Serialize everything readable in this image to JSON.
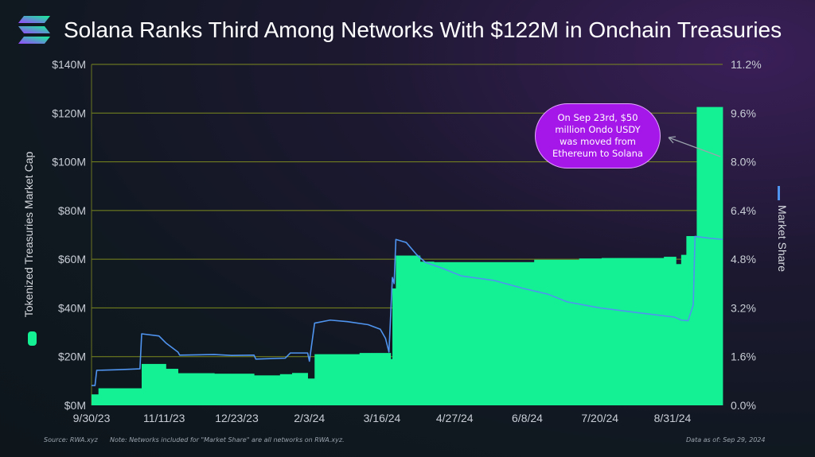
{
  "title": "Solana Ranks Third Among Networks With $122M in Onchain Treasuries",
  "footer": {
    "source_label": "Source:",
    "source_value": "RWA.xyz",
    "note_label": "Note:",
    "note_value": "Networks included for \"Market Share\" are all networks on RWA.xyz.",
    "asof_label": "Data as of:",
    "asof_value": "Sep 29, 2024"
  },
  "annotation": "On Sep 23rd, $50 million Ondo USDY was moved from Ethereum to Solana",
  "colors": {
    "bar": "#14f195",
    "line": "#4f94ef",
    "grid": "#7d8a1e",
    "callout": "#a516e8",
    "axis_text": "#c9ced6"
  },
  "chart_data": {
    "type": "area",
    "title": "Solana Ranks Third Among Networks With $122M in Onchain Treasuries",
    "x_tick_labels": [
      "9/30/23",
      "11/11/23",
      "12/23/23",
      "2/3/24",
      "3/16/24",
      "4/27/24",
      "6/8/24",
      "7/20/24",
      "8/31/24"
    ],
    "x_range": [
      "2023-09-30",
      "2024-09-29"
    ],
    "y_left": {
      "label": "Tokenized Treasuries Market Cap",
      "range": [
        0,
        140
      ],
      "unit": "$M",
      "tick_labels": [
        "$0M",
        "$20M",
        "$40M",
        "$60M",
        "$80M",
        "$100M",
        "$120M",
        "$140M"
      ]
    },
    "y_right": {
      "label": "Market Share",
      "range": [
        0,
        11.2
      ],
      "unit": "%",
      "tick_labels": [
        "0.0%",
        "1.6%",
        "3.2%",
        "4.8%",
        "6.4%",
        "8.0%",
        "9.6%",
        "11.2%"
      ]
    },
    "grid": true,
    "legend_placement": "axis-side",
    "series": [
      {
        "name": "Tokenized Treasuries Market Cap",
        "axis": "left",
        "style": "step-area",
        "points": [
          [
            "2023-09-30",
            4.5
          ],
          [
            "2023-10-04",
            7
          ],
          [
            "2023-10-29",
            17
          ],
          [
            "2023-11-12",
            15
          ],
          [
            "2023-11-19",
            13.2
          ],
          [
            "2023-12-10",
            13
          ],
          [
            "2024-01-02",
            12.3
          ],
          [
            "2024-01-17",
            12.8
          ],
          [
            "2024-01-24",
            13.3
          ],
          [
            "2024-02-02",
            11
          ],
          [
            "2024-02-06",
            21
          ],
          [
            "2024-03-03",
            21.5
          ],
          [
            "2024-03-21",
            19
          ],
          [
            "2024-03-22",
            48
          ],
          [
            "2024-03-24",
            61.5
          ],
          [
            "2024-04-07",
            59
          ],
          [
            "2024-04-15",
            58.8
          ],
          [
            "2024-06-12",
            59.8
          ],
          [
            "2024-07-08",
            60.3
          ],
          [
            "2024-07-21",
            60.5
          ],
          [
            "2024-08-26",
            61
          ],
          [
            "2024-09-02",
            58
          ],
          [
            "2024-09-05",
            61.8
          ],
          [
            "2024-09-08",
            69.5
          ],
          [
            "2024-09-12",
            69.5
          ],
          [
            "2024-09-14",
            122.5
          ],
          [
            "2024-09-29",
            122.5
          ]
        ]
      },
      {
        "name": "Market Share",
        "axis": "right",
        "style": "line",
        "points": [
          [
            "2023-09-30",
            0.65
          ],
          [
            "2023-10-02",
            0.65
          ],
          [
            "2023-10-03",
            1.15
          ],
          [
            "2023-10-15",
            1.17
          ],
          [
            "2023-10-28",
            1.2
          ],
          [
            "2023-10-29",
            2.35
          ],
          [
            "2023-11-08",
            2.28
          ],
          [
            "2023-11-12",
            2.05
          ],
          [
            "2023-11-19",
            1.75
          ],
          [
            "2023-11-20",
            1.65
          ],
          [
            "2023-12-10",
            1.67
          ],
          [
            "2023-12-20",
            1.64
          ],
          [
            "2024-01-02",
            1.65
          ],
          [
            "2024-01-03",
            1.52
          ],
          [
            "2024-01-20",
            1.55
          ],
          [
            "2024-01-23",
            1.72
          ],
          [
            "2024-02-02",
            1.72
          ],
          [
            "2024-02-03",
            1.45
          ],
          [
            "2024-02-06",
            2.7
          ],
          [
            "2024-02-15",
            2.8
          ],
          [
            "2024-02-25",
            2.75
          ],
          [
            "2024-03-08",
            2.65
          ],
          [
            "2024-03-15",
            2.5
          ],
          [
            "2024-03-18",
            2.2
          ],
          [
            "2024-03-20",
            1.75
          ],
          [
            "2024-03-22",
            4.2
          ],
          [
            "2024-03-23",
            4.0
          ],
          [
            "2024-03-24",
            5.45
          ],
          [
            "2024-03-30",
            5.35
          ],
          [
            "2024-04-05",
            4.95
          ],
          [
            "2024-04-10",
            4.7
          ],
          [
            "2024-04-20",
            4.5
          ],
          [
            "2024-05-01",
            4.25
          ],
          [
            "2024-05-20",
            4.1
          ],
          [
            "2024-06-05",
            3.85
          ],
          [
            "2024-06-20",
            3.65
          ],
          [
            "2024-07-01",
            3.4
          ],
          [
            "2024-07-20",
            3.2
          ],
          [
            "2024-08-10",
            3.05
          ],
          [
            "2024-09-01",
            2.9
          ],
          [
            "2024-09-05",
            2.8
          ],
          [
            "2024-09-09",
            2.78
          ],
          [
            "2024-09-12",
            3.3
          ],
          [
            "2024-09-13",
            5.55
          ],
          [
            "2024-09-20",
            5.5
          ],
          [
            "2024-09-29",
            5.45
          ]
        ]
      }
    ]
  }
}
